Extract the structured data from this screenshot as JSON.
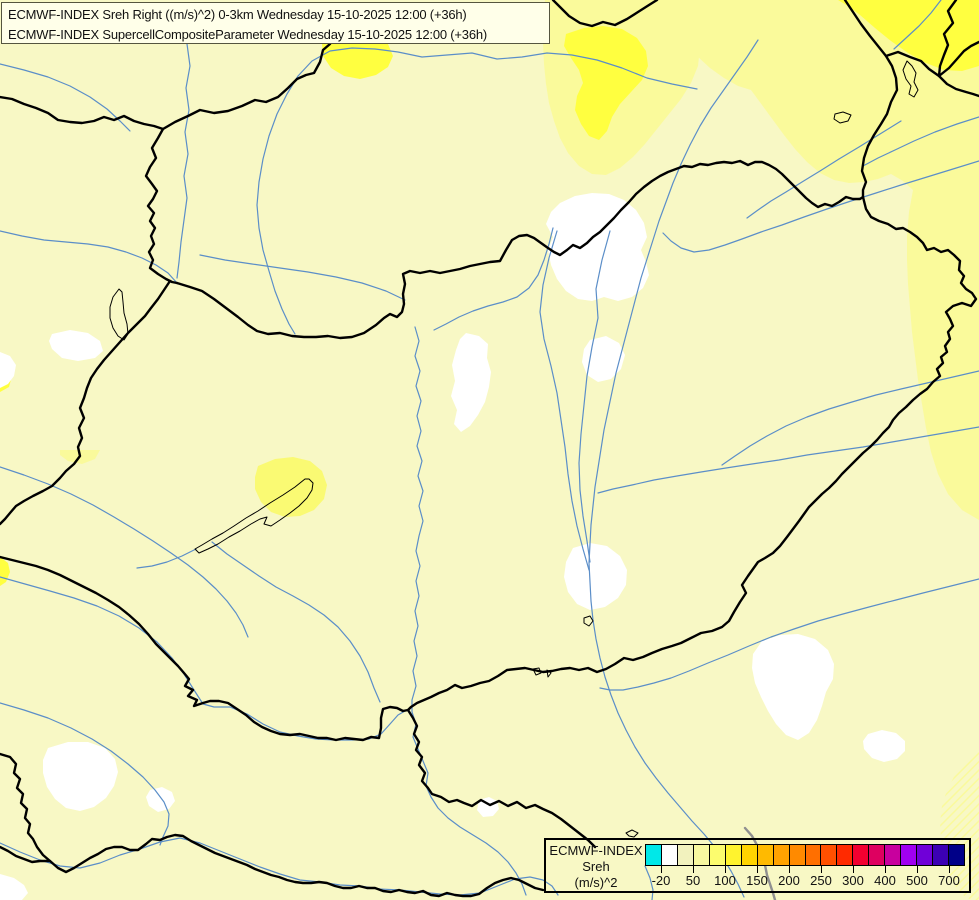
{
  "header": {
    "line1": "ECMWF-INDEX Sreh Right ((m/s)^2) 0-3km Wednesday 15-10-2025 12:00 (+36h)",
    "line2": "ECMWF-INDEX SupercellCompositeParameter Wednesday 15-10-2025 12:00 (+36h)"
  },
  "legend": {
    "title_lines": [
      "ECMWF-INDEX",
      "Sreh",
      "(m/s)^2"
    ],
    "tick_labels": [
      "-20",
      "50",
      "100",
      "150",
      "200",
      "250",
      "300",
      "400",
      "500",
      "700"
    ],
    "colors": [
      "#00E8E8",
      "#FFFFFF",
      "#F2F2BE",
      "#F8F8A0",
      "#FCFC6E",
      "#FFF32E",
      "#FFD400",
      "#FFBA00",
      "#FFA200",
      "#FF8A00",
      "#FF6F00",
      "#FF5000",
      "#FF2A00",
      "#F20030",
      "#DE0060",
      "#C8009E",
      "#A000F0",
      "#7000D8",
      "#3C00B4",
      "#000088"
    ]
  },
  "map_palette": {
    "background": "#F8F8C5",
    "patch_yellow_medium": "#FAFA9B",
    "patch_yellow_bright": "#FFFF40",
    "patch_yellow_blob": "#FAFA73",
    "patch_white": "#FFFFFF",
    "river_blue": "#5B8EC8",
    "border_black": "#000000",
    "border_gray": "#909090"
  }
}
